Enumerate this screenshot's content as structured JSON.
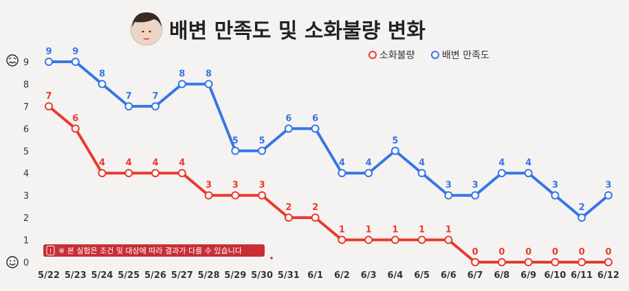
{
  "header": {
    "title": "배변 만족도 및 소화불량 변화"
  },
  "legend": {
    "indigestion_label": "소화불량",
    "satisfaction_label": "배변 만족도"
  },
  "note": {
    "text": "※ 본 실험은 조건 및 대상에 따라 결과가 다를 수 있습니다"
  },
  "icons": {
    "y_top": "frustrated-face-icon",
    "y_bottom": "smiley-face-icon",
    "header": "presenter-avatar-icon"
  },
  "colors": {
    "indigestion": "#e8392d",
    "satisfaction": "#3575e8",
    "note_bg": "#c72e36",
    "background": "#f5f3f1"
  },
  "chart_data": {
    "type": "line",
    "title": "배변 만족도 및 소화불량 변화",
    "categories": [
      "5/22",
      "5/23",
      "5/24",
      "5/25",
      "5/26",
      "5/27",
      "5/28",
      "5/29",
      "5/30",
      "5/31",
      "6/1",
      "6/2",
      "6/3",
      "6/4",
      "6/5",
      "6/6",
      "6/7",
      "6/8",
      "6/9",
      "6/10",
      "6/11",
      "6/12"
    ],
    "series": [
      {
        "name": "배변 만족도",
        "color": "#3575e8",
        "values": [
          9,
          9,
          8,
          7,
          7,
          8,
          8,
          5,
          5,
          6,
          6,
          4,
          4,
          5,
          4,
          3,
          3,
          4,
          4,
          3,
          2,
          3
        ]
      },
      {
        "name": "소화불량",
        "color": "#e8392d",
        "values": [
          7,
          6,
          4,
          4,
          4,
          4,
          3,
          3,
          3,
          2,
          2,
          1,
          1,
          1,
          1,
          1,
          0,
          0,
          0,
          0,
          0,
          0
        ]
      }
    ],
    "yticks": [
      0,
      1,
      2,
      3,
      4,
      5,
      6,
      7,
      8,
      9
    ],
    "ylim": [
      0,
      9
    ],
    "grid": false,
    "legend_position": "top-right"
  }
}
